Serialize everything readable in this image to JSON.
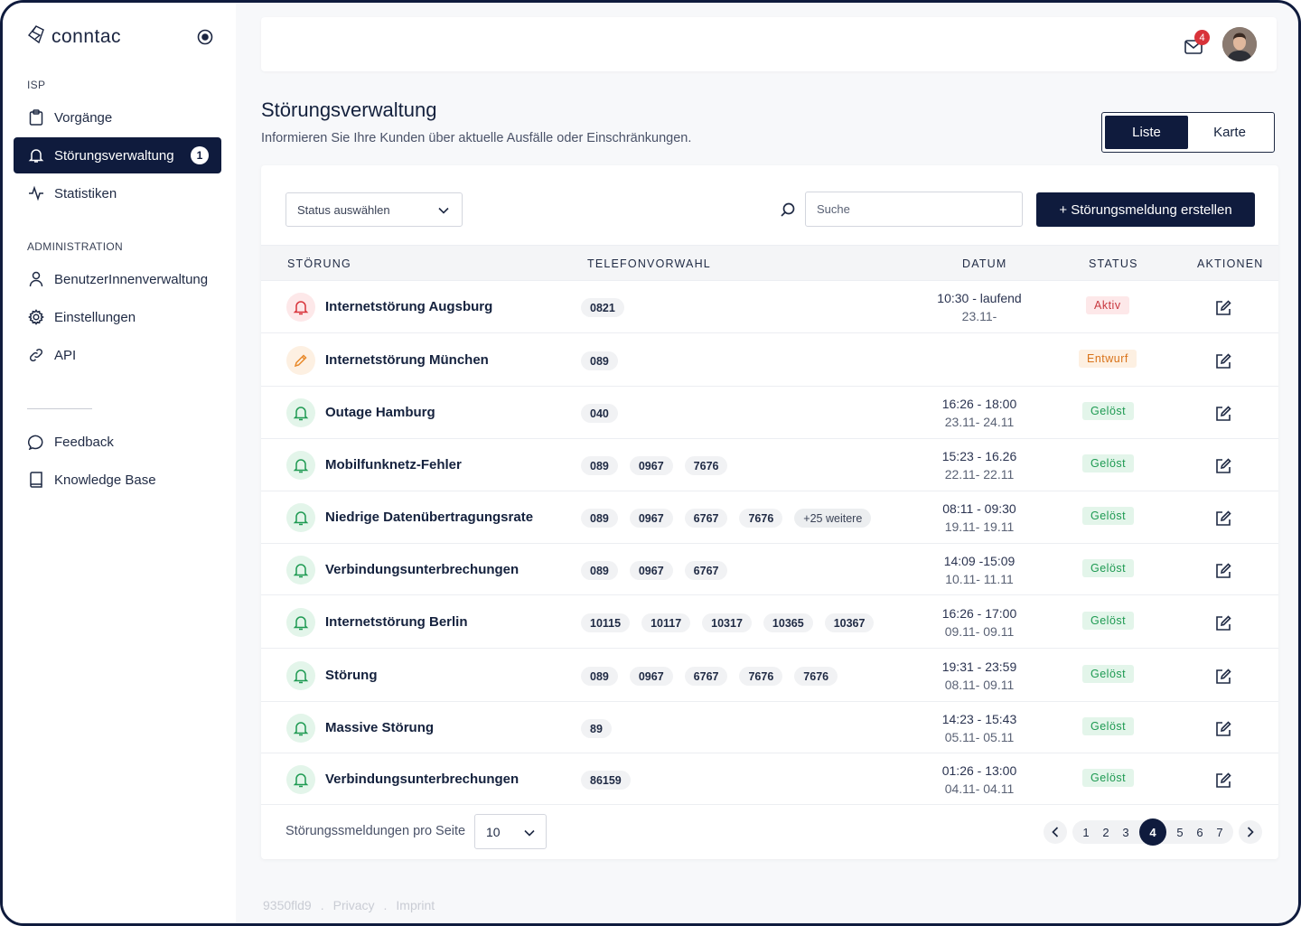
{
  "app": {
    "logo_text": "conntac"
  },
  "sidebar": {
    "section_isp": "ISP",
    "section_admin": "ADMINISTRATION",
    "items": [
      {
        "label": "Vorgänge",
        "icon": "clipboard-icon"
      },
      {
        "label": "Störungsverwaltung",
        "icon": "bell-icon",
        "badge": "1",
        "active": true
      },
      {
        "label": "Statistiken",
        "icon": "activity-icon"
      },
      {
        "label": "BenutzerInnenverwaltung",
        "icon": "user-icon"
      },
      {
        "label": "Einstellungen",
        "icon": "gear-icon"
      },
      {
        "label": "API",
        "icon": "link-icon"
      },
      {
        "label": "Feedback",
        "icon": "chat-icon"
      },
      {
        "label": "Knowledge Base",
        "icon": "book-icon"
      }
    ]
  },
  "topbar": {
    "mail_count": "4"
  },
  "header": {
    "title": "Störungsverwaltung",
    "subtitle": "Informieren Sie Ihre Kunden über aktuelle Ausfälle oder Einschränkungen.",
    "view_list": "Liste",
    "view_map": "Karte"
  },
  "toolbar": {
    "status_placeholder": "Status auswählen",
    "search_placeholder": "Suche",
    "create_label": "+ Störungsmeldung erstellen"
  },
  "table": {
    "columns": [
      "STÖRUNG",
      "TELEFONVORWAHL",
      "DATUM",
      "STATUS",
      "AKTIONEN"
    ],
    "rows": [
      {
        "title": "Internetstörung Augsburg",
        "state": "red",
        "prefixes": [
          "0821"
        ],
        "date1": "10:30 - laufend",
        "date2": "23.11-",
        "status": "Aktiv",
        "status_kind": "aktiv"
      },
      {
        "title": "Internetstörung München",
        "state": "orange",
        "prefixes": [
          "089"
        ],
        "date1": "",
        "date2": "",
        "status": "Entwurf",
        "status_kind": "entwurf"
      },
      {
        "title": "Outage Hamburg",
        "state": "green",
        "prefixes": [
          "040"
        ],
        "date1": "16:26 - 18:00",
        "date2": "23.11- 24.11",
        "status": "Gelöst",
        "status_kind": "geloest"
      },
      {
        "title": "Mobilfunknetz-Fehler",
        "state": "green",
        "prefixes": [
          "089",
          "0967",
          "7676"
        ],
        "date1": "15:23 - 16.26",
        "date2": "22.11- 22.11",
        "status": "Gelöst",
        "status_kind": "geloest"
      },
      {
        "title": "Niedrige Datenübertragungsrate",
        "state": "green",
        "prefixes": [
          "089",
          "0967",
          "6767",
          "7676"
        ],
        "more": "+25 weitere",
        "date1": "08:11 - 09:30",
        "date2": "19.11- 19.11",
        "status": "Gelöst",
        "status_kind": "geloest"
      },
      {
        "title": "Verbindungsunterbrechungen",
        "state": "green",
        "prefixes": [
          "089",
          "0967",
          "6767"
        ],
        "date1": "14:09 -15:09",
        "date2": "10.11- 11.11",
        "status": "Gelöst",
        "status_kind": "geloest"
      },
      {
        "title": "Internetstörung Berlin",
        "state": "green",
        "prefixes": [
          "10115",
          "10117",
          "10317",
          "10365",
          "10367"
        ],
        "date1": "16:26 - 17:00",
        "date2": "09.11- 09.11",
        "status": "Gelöst",
        "status_kind": "geloest"
      },
      {
        "title": "Störung",
        "state": "green",
        "prefixes": [
          "089",
          "0967",
          "6767",
          "7676",
          "7676"
        ],
        "date1": "19:31 - 23:59",
        "date2": "08.11- 09.11",
        "status": "Gelöst",
        "status_kind": "geloest"
      },
      {
        "title": "Massive Störung",
        "state": "green",
        "prefixes": [
          "89"
        ],
        "date1": "14:23 - 15:43",
        "date2": "05.11- 05.11",
        "status": "Gelöst",
        "status_kind": "geloest"
      },
      {
        "title": "Verbindungsunterbrechungen",
        "state": "green",
        "prefixes": [
          "86159"
        ],
        "date1": "01:26 - 13:00",
        "date2": "04.11- 04.11",
        "status": "Gelöst",
        "status_kind": "geloest"
      }
    ]
  },
  "pagination": {
    "per_page_label": "Störungssmeldungen pro Seite",
    "per_page_value": "10",
    "pages": [
      "1",
      "2",
      "3",
      "4",
      "5",
      "6",
      "7"
    ],
    "current": "4"
  },
  "footer": {
    "version": "9350fld9",
    "sep": ".",
    "privacy": "Privacy",
    "imprint": "Imprint"
  },
  "colors": {
    "primary": "#0f1b3d",
    "danger": "#c8383f",
    "warning": "#d9731a",
    "success": "#1e9a52"
  }
}
